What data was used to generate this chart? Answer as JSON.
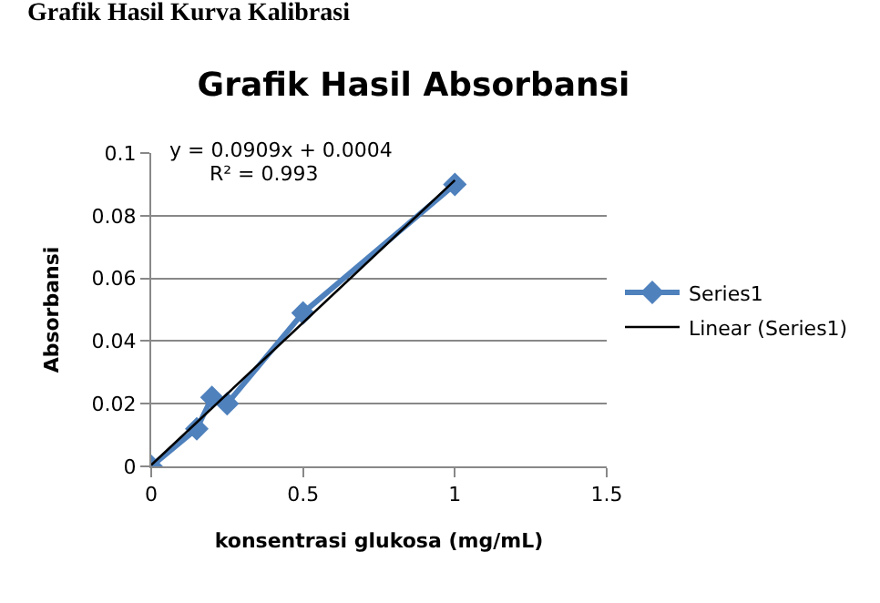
{
  "chart_data": {
    "type": "line",
    "title": "Grafik Hasil Absorbansi",
    "xlabel": "konsentrasi glukosa (mg/mL)",
    "ylabel": "Absorbansi",
    "x": [
      0,
      0.15,
      0.2,
      0.25,
      0.5,
      1
    ],
    "series": [
      {
        "name": "Series1",
        "color": "#4f81bd",
        "values": [
          0,
          0.012,
          0.022,
          0.02,
          0.049,
          0.09
        ],
        "marker": "diamond"
      },
      {
        "name": "Linear (Series1)",
        "color": "#000000",
        "x": [
          0,
          1
        ],
        "values": [
          0.0004,
          0.0913
        ],
        "marker": "none"
      }
    ],
    "annotations": [
      "Grafik Hasil Kurva Kalibrasi",
      "y = 0.0909x + 0.0004",
      "R² = 0.993"
    ],
    "xlim": [
      0,
      1.5
    ],
    "xticks": [
      0,
      0.5,
      1,
      1.5
    ],
    "ylim": [
      0,
      0.1
    ],
    "yticks": [
      0,
      0.02,
      0.04,
      0.06,
      0.08,
      0.1
    ],
    "grid": "y",
    "legend": "right"
  }
}
